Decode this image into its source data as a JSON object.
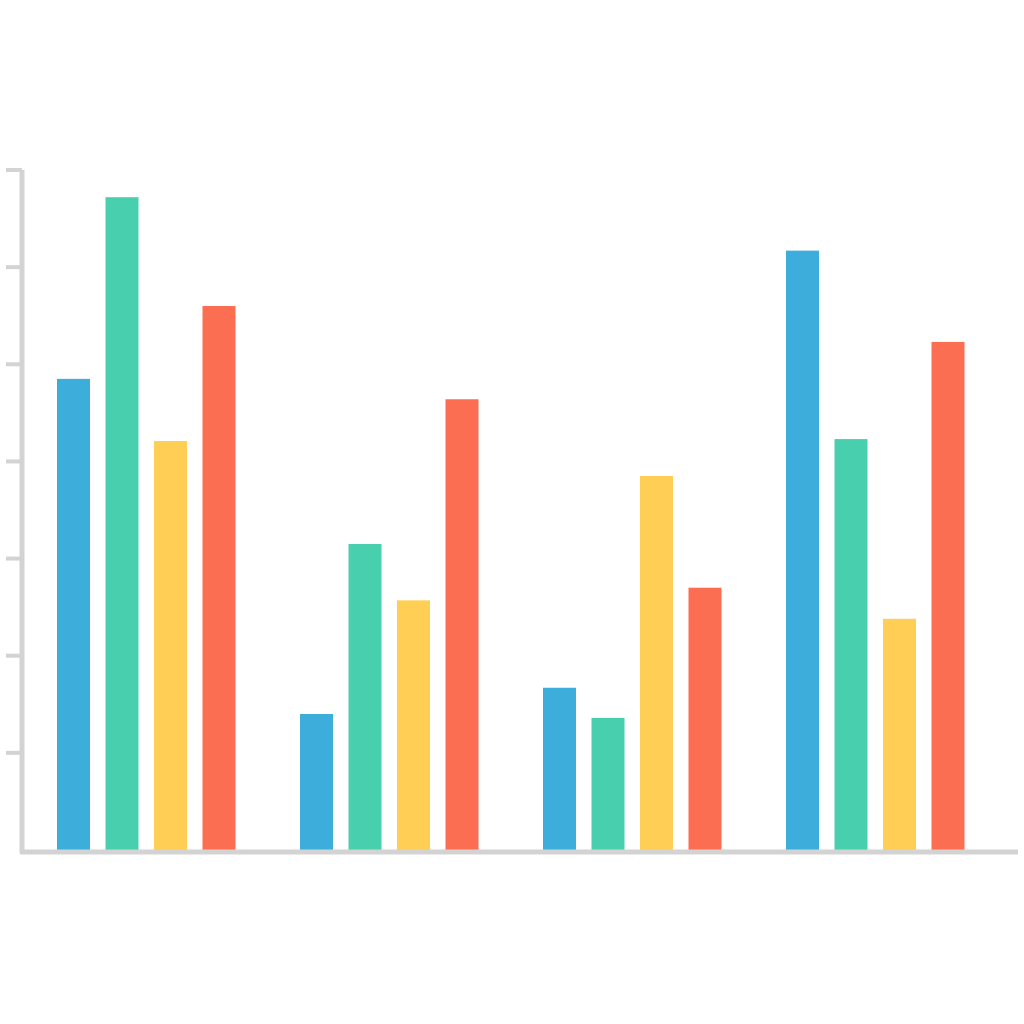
{
  "chart_data": {
    "type": "bar",
    "title": "",
    "xlabel": "",
    "ylabel": "",
    "ylim": [
      0,
      7
    ],
    "y_ticks": [
      1,
      2,
      3,
      4,
      5,
      6,
      7
    ],
    "tick_labels_visible": false,
    "grid": false,
    "legend": "none",
    "categories": [
      "",
      "",
      "",
      ""
    ],
    "series": [
      {
        "color": "#3DAEDB",
        "values": [
          4.85,
          1.4,
          1.67,
          6.17
        ]
      },
      {
        "color": "#48CFAE",
        "values": [
          6.72,
          3.15,
          1.36,
          4.23
        ]
      },
      {
        "color": "#FFCE54",
        "values": [
          4.21,
          2.57,
          3.85,
          2.38
        ]
      },
      {
        "color": "#FC6E51",
        "values": [
          5.6,
          4.64,
          2.7,
          5.23
        ]
      }
    ]
  }
}
